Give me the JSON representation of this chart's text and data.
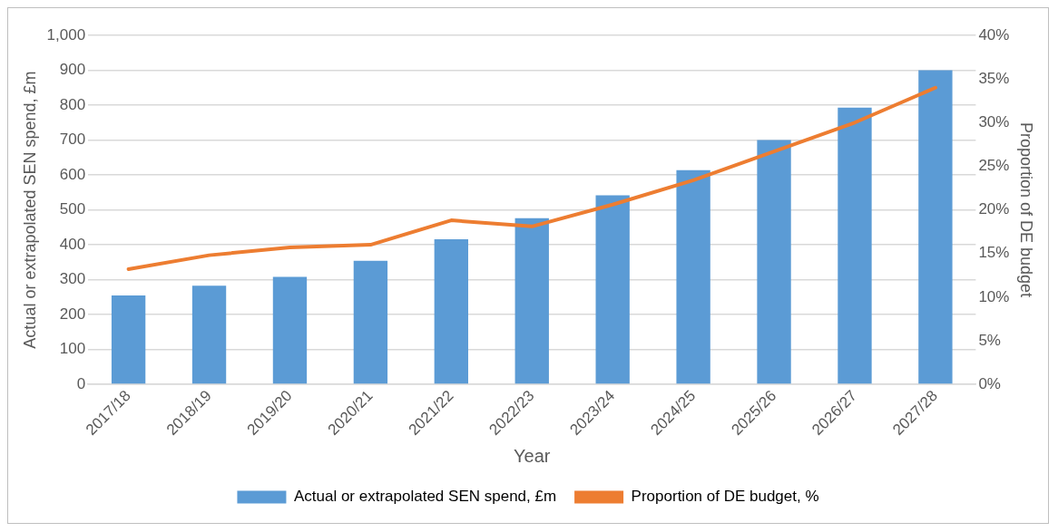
{
  "chart_data": {
    "type": "bar",
    "xlabel": "Year",
    "ylabel": "Actual or extrapolated SEN spend, £m",
    "y2label": "Proportion of DE budget",
    "categories": [
      "2017/18",
      "2018/19",
      "2019/20",
      "2020/21",
      "2021/22",
      "2022/23",
      "2023/24",
      "2024/25",
      "2025/26",
      "2026/27",
      "2027/28"
    ],
    "series": [
      {
        "name": "Actual or extrapolated SEN spend, £m",
        "color": "#5b9bd5",
        "values": [
          255,
          283,
          308,
          354,
          416,
          476,
          542,
          614,
          700,
          793,
          900
        ]
      },
      {
        "name": "Proportion of DE budget, %",
        "type": "line",
        "axis": "y2",
        "color": "#ed7d31",
        "values": [
          13.2,
          14.8,
          15.7,
          16.0,
          18.8,
          18.1,
          20.6,
          23.4,
          26.7,
          30.0,
          34.0
        ]
      }
    ],
    "ylim": [
      0,
      1000
    ],
    "yticks": [
      0,
      100,
      200,
      300,
      400,
      500,
      600,
      700,
      800,
      900,
      {
        "value": 1000,
        "label": "1,000"
      }
    ],
    "y2lim": [
      0,
      40
    ],
    "y2ticks": [
      {
        "value": 0,
        "label": "0%"
      },
      {
        "value": 5,
        "label": "5%"
      },
      {
        "value": 10,
        "label": "10%"
      },
      {
        "value": 15,
        "label": "15%"
      },
      {
        "value": 20,
        "label": "20%"
      },
      {
        "value": 25,
        "label": "25%"
      },
      {
        "value": 30,
        "label": "30%"
      },
      {
        "value": 35,
        "label": "35%"
      },
      {
        "value": 40,
        "label": "40%"
      }
    ],
    "grid": "y",
    "legend": "bottom",
    "marker": "none",
    "line_style": "solid"
  }
}
